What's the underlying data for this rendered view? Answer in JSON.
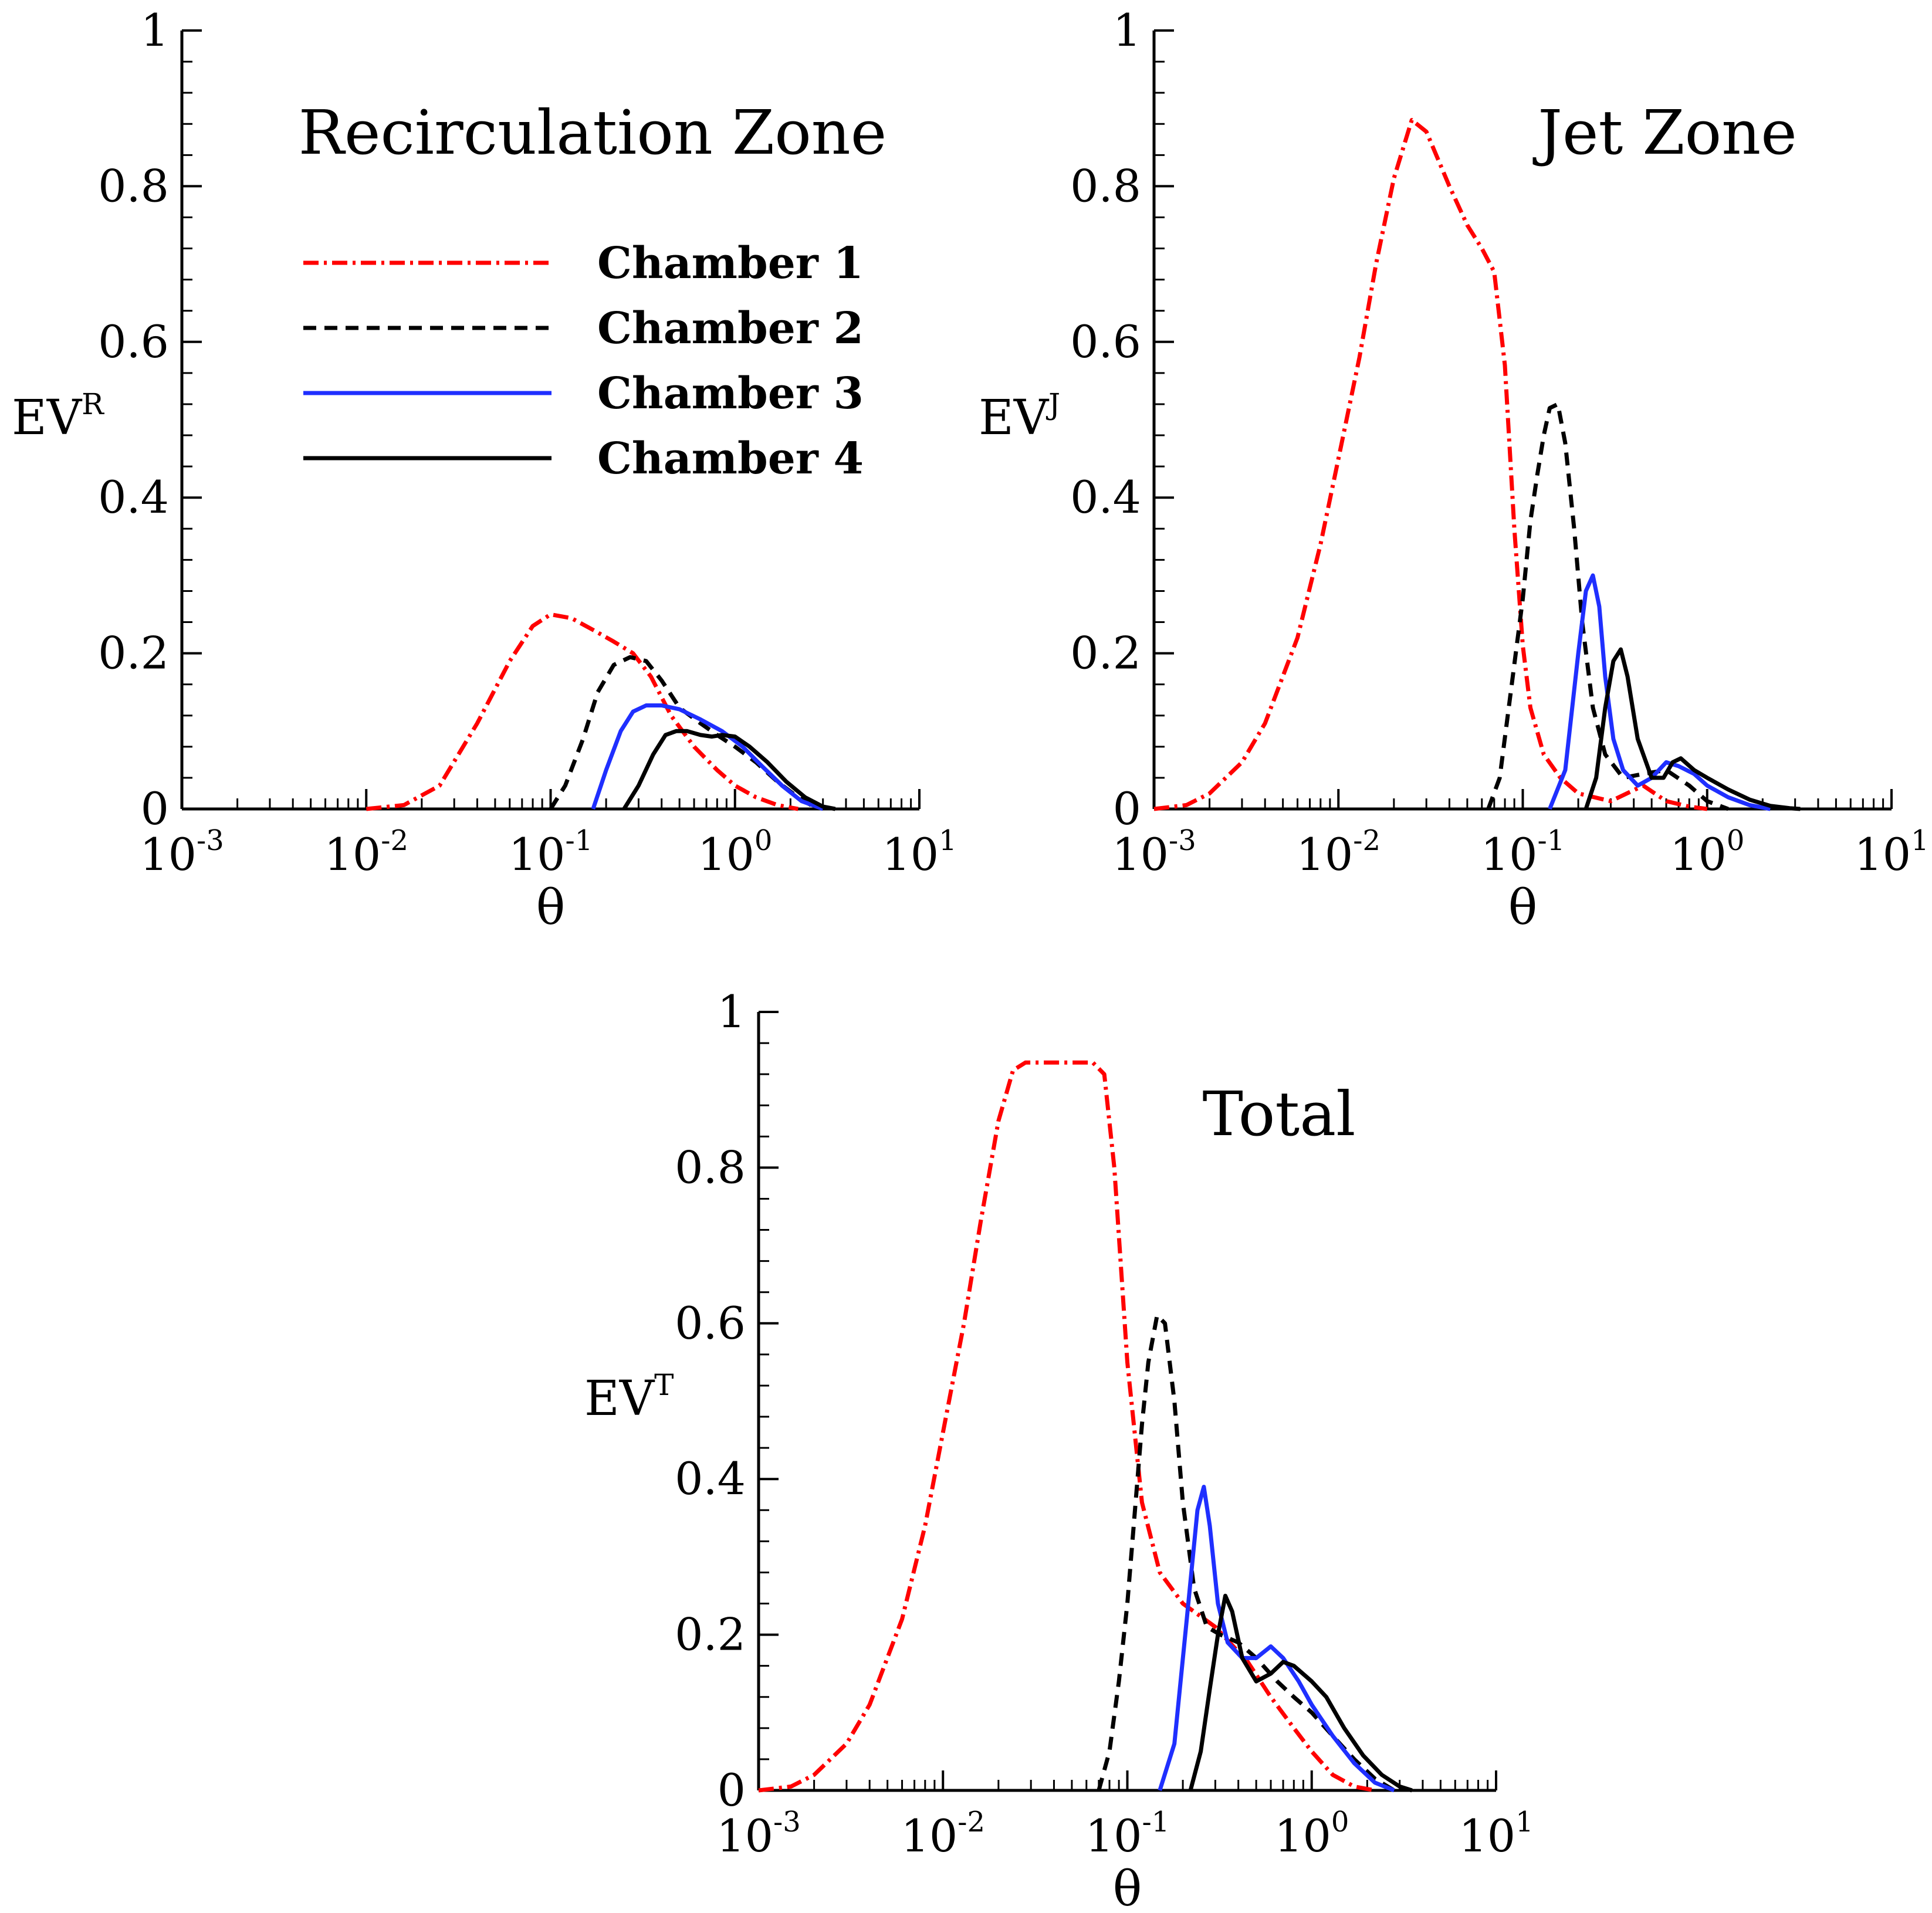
{
  "chart_data": [
    {
      "type": "line",
      "id": "recirculation",
      "title": "Recirculation Zone",
      "xlabel": "θ",
      "ylabel": "EV",
      "ylabel_sup": "R",
      "xscale": "log",
      "xlim": [
        0.001,
        10
      ],
      "ylim": [
        0,
        1
      ],
      "x_ticks": [
        {
          "base": "10",
          "exp": "-3"
        },
        {
          "base": "10",
          "exp": "-2"
        },
        {
          "base": "10",
          "exp": "-1"
        },
        {
          "base": "10",
          "exp": "0"
        },
        {
          "base": "10",
          "exp": "1"
        }
      ],
      "y_ticks": [
        "0",
        "0.2",
        "0.4",
        "0.6",
        "0.8",
        "1"
      ],
      "legend": {
        "position": "top-center"
      },
      "series": [
        {
          "name": "Chamber 1",
          "color": "#ff0000",
          "dash": "dashdot",
          "x": [
            0.01,
            0.016,
            0.025,
            0.04,
            0.06,
            0.08,
            0.1,
            0.13,
            0.17,
            0.22,
            0.28,
            0.35,
            0.45,
            0.6,
            0.8,
            1.0,
            1.3,
            1.7,
            2.2
          ],
          "y": [
            0,
            0.005,
            0.03,
            0.11,
            0.19,
            0.235,
            0.25,
            0.245,
            0.23,
            0.215,
            0.2,
            0.17,
            0.12,
            0.08,
            0.05,
            0.03,
            0.015,
            0.005,
            0
          ]
        },
        {
          "name": "Chamber 2",
          "color": "#000000",
          "dash": "dashed",
          "x": [
            0.1,
            0.12,
            0.15,
            0.18,
            0.22,
            0.27,
            0.33,
            0.4,
            0.5,
            0.65,
            0.8,
            1.0,
            1.3,
            1.7,
            2.2,
            2.8
          ],
          "y": [
            0,
            0.03,
            0.09,
            0.15,
            0.185,
            0.195,
            0.19,
            0.165,
            0.13,
            0.11,
            0.095,
            0.08,
            0.06,
            0.035,
            0.015,
            0
          ]
        },
        {
          "name": "Chamber 3",
          "color": "#1f2fff",
          "dash": "solid",
          "x": [
            0.17,
            0.2,
            0.24,
            0.28,
            0.33,
            0.4,
            0.5,
            0.65,
            0.85,
            1.1,
            1.4,
            1.8,
            2.3,
            3.0
          ],
          "y": [
            0,
            0.05,
            0.1,
            0.125,
            0.133,
            0.133,
            0.128,
            0.115,
            0.1,
            0.08,
            0.055,
            0.03,
            0.01,
            0
          ]
        },
        {
          "name": "Chamber 4",
          "color": "#000000",
          "dash": "solid",
          "x": [
            0.25,
            0.3,
            0.36,
            0.42,
            0.48,
            0.55,
            0.65,
            0.75,
            0.85,
            1.0,
            1.2,
            1.5,
            1.9,
            2.4,
            3.0,
            3.5
          ],
          "y": [
            0,
            0.03,
            0.07,
            0.095,
            0.1,
            0.1,
            0.095,
            0.093,
            0.095,
            0.093,
            0.08,
            0.06,
            0.035,
            0.015,
            0.003,
            0
          ]
        }
      ]
    },
    {
      "type": "line",
      "id": "jet",
      "title": "Jet Zone",
      "xlabel": "θ",
      "ylabel": "EV",
      "ylabel_sup": "J",
      "xscale": "log",
      "xlim": [
        0.001,
        10
      ],
      "ylim": [
        0,
        1
      ],
      "x_ticks": [
        {
          "base": "10",
          "exp": "-3"
        },
        {
          "base": "10",
          "exp": "-2"
        },
        {
          "base": "10",
          "exp": "-1"
        },
        {
          "base": "10",
          "exp": "0"
        },
        {
          "base": "10",
          "exp": "1"
        }
      ],
      "y_ticks": [
        "0",
        "0.2",
        "0.4",
        "0.6",
        "0.8",
        "1"
      ],
      "series": [
        {
          "name": "Chamber 1",
          "color": "#ff0000",
          "dash": "dashdot",
          "x": [
            0.001,
            0.0015,
            0.002,
            0.003,
            0.004,
            0.006,
            0.008,
            0.01,
            0.013,
            0.016,
            0.02,
            0.025,
            0.03,
            0.04,
            0.05,
            0.06,
            0.07,
            0.08,
            0.09,
            0.1,
            0.11,
            0.13,
            0.16,
            0.2,
            0.3,
            0.45,
            0.6,
            0.8,
            1.0
          ],
          "y": [
            0,
            0.005,
            0.02,
            0.06,
            0.11,
            0.22,
            0.34,
            0.45,
            0.58,
            0.7,
            0.81,
            0.885,
            0.87,
            0.8,
            0.75,
            0.72,
            0.69,
            0.57,
            0.36,
            0.21,
            0.13,
            0.07,
            0.04,
            0.02,
            0.01,
            0.03,
            0.01,
            0.003,
            0
          ]
        },
        {
          "name": "Chamber 2",
          "color": "#000000",
          "dash": "dashed",
          "x": [
            0.065,
            0.075,
            0.085,
            0.1,
            0.11,
            0.12,
            0.13,
            0.14,
            0.155,
            0.17,
            0.19,
            0.21,
            0.24,
            0.28,
            0.35,
            0.45,
            0.6,
            0.8,
            1.0,
            1.3
          ],
          "y": [
            0,
            0.04,
            0.14,
            0.27,
            0.37,
            0.43,
            0.48,
            0.515,
            0.52,
            0.47,
            0.36,
            0.24,
            0.13,
            0.07,
            0.04,
            0.045,
            0.05,
            0.03,
            0.01,
            0
          ]
        },
        {
          "name": "Chamber 3",
          "color": "#1f2fff",
          "dash": "solid",
          "x": [
            0.14,
            0.17,
            0.2,
            0.22,
            0.24,
            0.26,
            0.28,
            0.31,
            0.35,
            0.42,
            0.5,
            0.6,
            0.7,
            0.85,
            1.0,
            1.3,
            1.7,
            2.2
          ],
          "y": [
            0,
            0.05,
            0.2,
            0.28,
            0.3,
            0.26,
            0.17,
            0.09,
            0.05,
            0.03,
            0.04,
            0.06,
            0.055,
            0.045,
            0.03,
            0.015,
            0.005,
            0
          ]
        },
        {
          "name": "Chamber 4",
          "color": "#000000",
          "dash": "solid",
          "x": [
            0.22,
            0.25,
            0.28,
            0.31,
            0.34,
            0.37,
            0.42,
            0.5,
            0.58,
            0.65,
            0.72,
            0.85,
            1.0,
            1.3,
            1.7,
            2.2,
            2.8,
            3.2
          ],
          "y": [
            0,
            0.04,
            0.13,
            0.19,
            0.205,
            0.17,
            0.09,
            0.04,
            0.04,
            0.06,
            0.065,
            0.05,
            0.04,
            0.025,
            0.012,
            0.004,
            0.001,
            0
          ]
        }
      ]
    },
    {
      "type": "line",
      "id": "total",
      "title": "Total",
      "xlabel": "θ",
      "ylabel": "EV",
      "ylabel_sup": "T",
      "xscale": "log",
      "xlim": [
        0.001,
        10
      ],
      "ylim": [
        0,
        1
      ],
      "x_ticks": [
        {
          "base": "10",
          "exp": "-3"
        },
        {
          "base": "10",
          "exp": "-2"
        },
        {
          "base": "10",
          "exp": "-1"
        },
        {
          "base": "10",
          "exp": "0"
        },
        {
          "base": "10",
          "exp": "1"
        }
      ],
      "y_ticks": [
        "0",
        "0.2",
        "0.4",
        "0.6",
        "0.8",
        "1"
      ],
      "series": [
        {
          "name": "Chamber 1",
          "color": "#ff0000",
          "dash": "dashdot",
          "x": [
            0.001,
            0.0015,
            0.002,
            0.003,
            0.004,
            0.006,
            0.008,
            0.01,
            0.013,
            0.016,
            0.02,
            0.024,
            0.028,
            0.035,
            0.05,
            0.065,
            0.075,
            0.085,
            0.1,
            0.12,
            0.15,
            0.2,
            0.3,
            0.45,
            0.6,
            0.8,
            1.0,
            1.3,
            1.7,
            2.2
          ],
          "y": [
            0,
            0.005,
            0.02,
            0.06,
            0.11,
            0.22,
            0.34,
            0.46,
            0.6,
            0.73,
            0.86,
            0.925,
            0.935,
            0.935,
            0.935,
            0.935,
            0.92,
            0.8,
            0.55,
            0.37,
            0.28,
            0.24,
            0.21,
            0.165,
            0.12,
            0.08,
            0.05,
            0.02,
            0.005,
            0
          ]
        },
        {
          "name": "Chamber 2",
          "color": "#000000",
          "dash": "dashed",
          "x": [
            0.07,
            0.08,
            0.09,
            0.1,
            0.11,
            0.12,
            0.13,
            0.145,
            0.16,
            0.18,
            0.2,
            0.23,
            0.27,
            0.32,
            0.4,
            0.5,
            0.65,
            0.8,
            1.0,
            1.3,
            1.7,
            2.2,
            2.8
          ],
          "y": [
            0,
            0.05,
            0.14,
            0.24,
            0.36,
            0.47,
            0.55,
            0.61,
            0.6,
            0.5,
            0.37,
            0.26,
            0.21,
            0.2,
            0.19,
            0.17,
            0.14,
            0.12,
            0.1,
            0.07,
            0.04,
            0.015,
            0
          ]
        },
        {
          "name": "Chamber 3",
          "color": "#1f2fff",
          "dash": "solid",
          "x": [
            0.15,
            0.18,
            0.21,
            0.24,
            0.26,
            0.28,
            0.31,
            0.35,
            0.42,
            0.5,
            0.6,
            0.7,
            0.85,
            1.0,
            1.3,
            1.7,
            2.2,
            2.8
          ],
          "y": [
            0,
            0.06,
            0.22,
            0.36,
            0.39,
            0.34,
            0.24,
            0.19,
            0.17,
            0.17,
            0.185,
            0.17,
            0.14,
            0.11,
            0.07,
            0.035,
            0.01,
            0
          ]
        },
        {
          "name": "Chamber 4",
          "color": "#000000",
          "dash": "solid",
          "x": [
            0.22,
            0.25,
            0.28,
            0.31,
            0.34,
            0.37,
            0.42,
            0.5,
            0.6,
            0.7,
            0.8,
            1.0,
            1.2,
            1.5,
            1.9,
            2.4,
            3.0,
            3.5
          ],
          "y": [
            0,
            0.05,
            0.13,
            0.2,
            0.25,
            0.23,
            0.17,
            0.14,
            0.15,
            0.165,
            0.16,
            0.14,
            0.12,
            0.08,
            0.045,
            0.02,
            0.005,
            0
          ]
        }
      ]
    }
  ]
}
